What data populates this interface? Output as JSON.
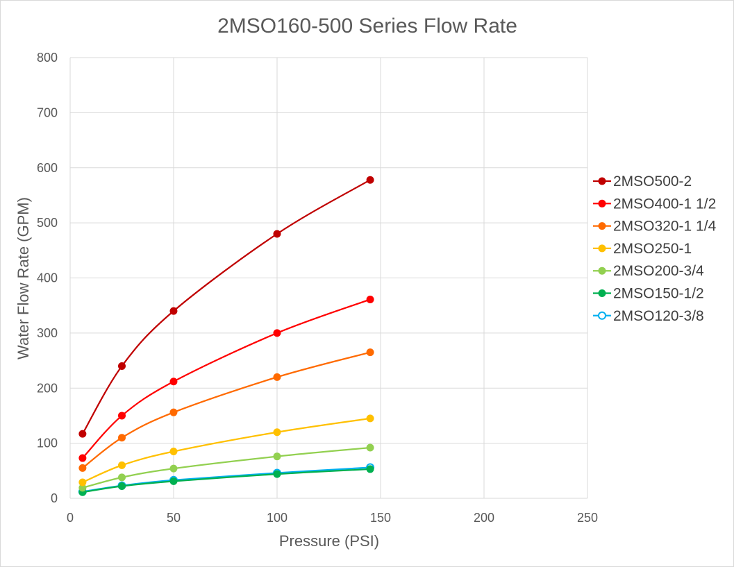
{
  "chart_data": {
    "type": "scatter",
    "title": "2MSO160-500 Series Flow Rate",
    "xlabel": "Pressure (PSI)",
    "ylabel": "Water Flow Rate (GPM)",
    "xlim": [
      0,
      250
    ],
    "ylim": [
      0,
      800
    ],
    "xticks": [
      0,
      50,
      100,
      150,
      200,
      250
    ],
    "yticks": [
      0,
      100,
      200,
      300,
      400,
      500,
      600,
      700,
      800
    ],
    "xtick_labels": [
      "0",
      "50",
      "100",
      "150",
      "200",
      "250"
    ],
    "ytick_labels": [
      "0",
      "100",
      "200",
      "300",
      "400",
      "500",
      "600",
      "700",
      "800"
    ],
    "grid": true,
    "smooth_lines": true,
    "legend_position": "right",
    "series": [
      {
        "name": "2MSO500-2",
        "color": "#c00000",
        "marker": "filled",
        "x": [
          6,
          25,
          50,
          100,
          145
        ],
        "y": [
          117,
          240,
          340,
          480,
          578
        ]
      },
      {
        "name": "2MSO400-1 1/2",
        "color": "#ff0000",
        "marker": "filled",
        "x": [
          6,
          25,
          50,
          100,
          145
        ],
        "y": [
          73,
          150,
          212,
          300,
          361
        ]
      },
      {
        "name": "2MSO320-1 1/4",
        "color": "#ff6a00",
        "marker": "filled",
        "x": [
          6,
          25,
          50,
          100,
          145
        ],
        "y": [
          55,
          110,
          156,
          220,
          265
        ]
      },
      {
        "name": "2MSO250-1",
        "color": "#ffc000",
        "marker": "filled",
        "x": [
          6,
          25,
          50,
          100,
          145
        ],
        "y": [
          29,
          60,
          85,
          120,
          145
        ]
      },
      {
        "name": "2MSO200-3/4",
        "color": "#92d050",
        "marker": "filled",
        "x": [
          6,
          25,
          50,
          100,
          145
        ],
        "y": [
          19,
          38,
          54,
          76,
          92
        ]
      },
      {
        "name": "2MSO150-1/2",
        "color": "#00b050",
        "marker": "filled",
        "x": [
          6,
          25,
          50,
          100,
          145
        ],
        "y": [
          11,
          22,
          31,
          44,
          53
        ]
      },
      {
        "name": "2MSO120-3/8",
        "color": "#00b0f0",
        "marker": "hollow",
        "x": [
          6,
          25,
          50,
          100,
          145
        ],
        "y": [
          12,
          23,
          33,
          46,
          56
        ]
      }
    ]
  }
}
